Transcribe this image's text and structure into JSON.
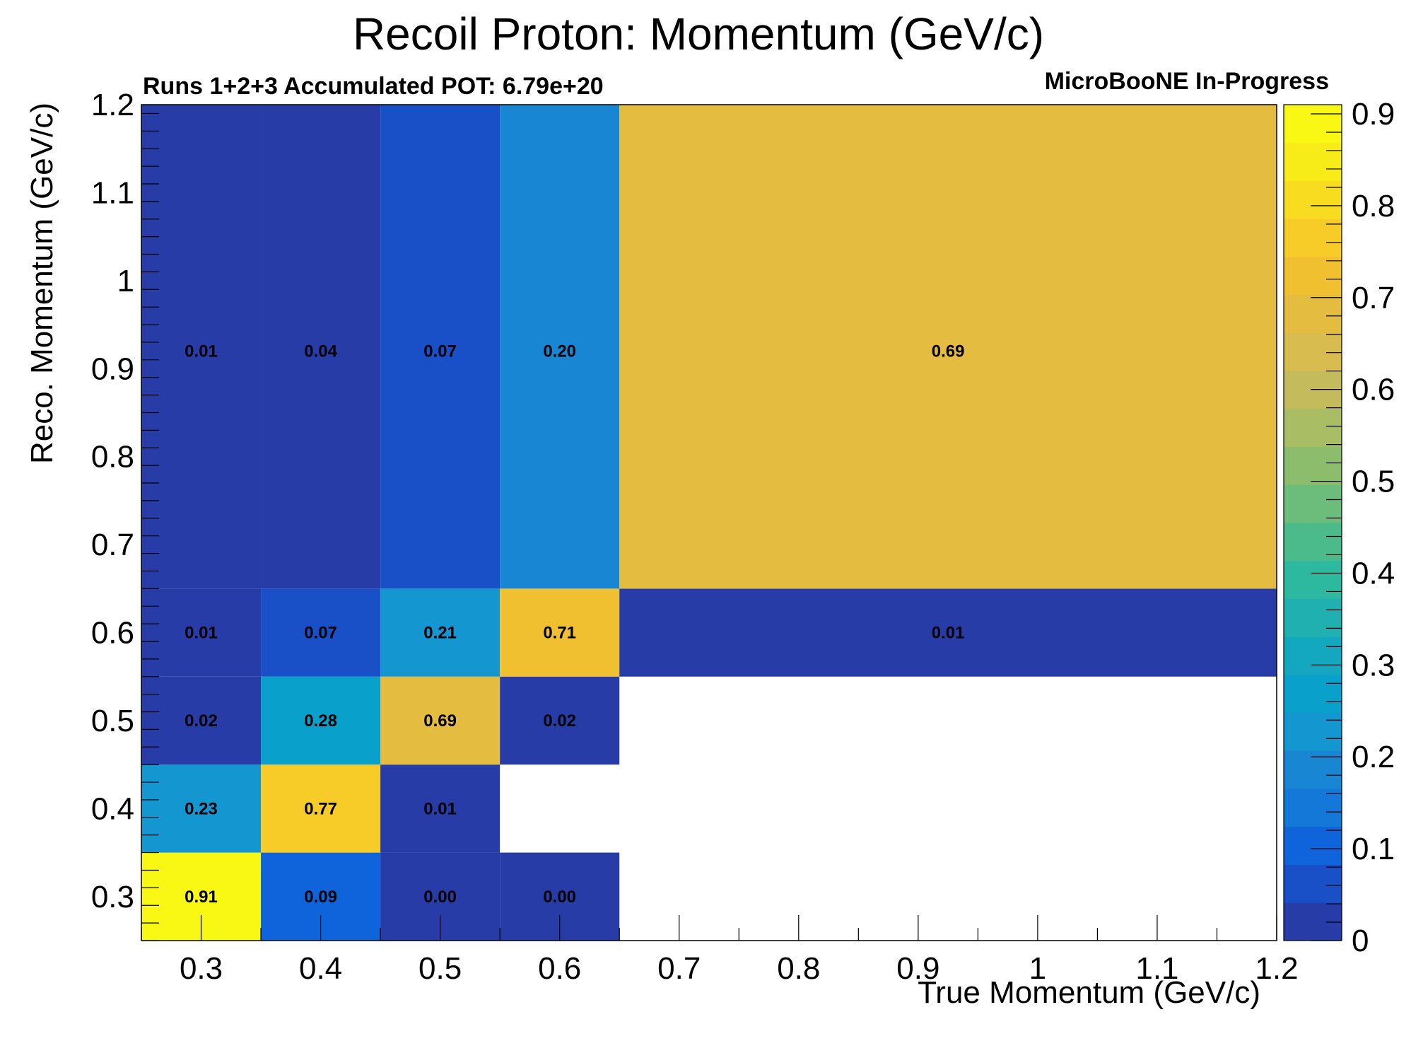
{
  "chart_data": {
    "type": "heatmap",
    "title": "Recoil Proton: Momentum (GeV/c)",
    "subtitle_left": "Runs 1+2+3 Accumulated POT: 6.79e+20",
    "subtitle_right": "MicroBooNE In-Progress",
    "xlabel": "True Momentum (GeV/c)",
    "ylabel": "Reco. Momentum (GeV/c)",
    "xlim": [
      0.25,
      1.2
    ],
    "ylim": [
      0.25,
      1.2
    ],
    "x_ticks": [
      "0.3",
      "0.4",
      "0.5",
      "0.6",
      "0.7",
      "0.8",
      "0.9",
      "1",
      "1.1",
      "1.2"
    ],
    "y_ticks": [
      "0.3",
      "0.4",
      "0.5",
      "0.6",
      "0.7",
      "0.8",
      "0.9",
      "1",
      "1.1",
      "1.2"
    ],
    "x_bin_edges": [
      0.25,
      0.35,
      0.45,
      0.55,
      0.65,
      1.2
    ],
    "y_bin_edges": [
      0.25,
      0.35,
      0.45,
      0.55,
      0.65,
      1.2
    ],
    "cells": [
      {
        "xi": 0,
        "yi": 0,
        "value": 0.91,
        "label": "0.91"
      },
      {
        "xi": 1,
        "yi": 0,
        "value": 0.09,
        "label": "0.09"
      },
      {
        "xi": 2,
        "yi": 0,
        "value": 0.0,
        "label": "0.00"
      },
      {
        "xi": 3,
        "yi": 0,
        "value": 0.0,
        "label": "0.00"
      },
      {
        "xi": 0,
        "yi": 1,
        "value": 0.23,
        "label": "0.23"
      },
      {
        "xi": 1,
        "yi": 1,
        "value": 0.77,
        "label": "0.77"
      },
      {
        "xi": 2,
        "yi": 1,
        "value": 0.01,
        "label": "0.01"
      },
      {
        "xi": 0,
        "yi": 2,
        "value": 0.02,
        "label": "0.02"
      },
      {
        "xi": 1,
        "yi": 2,
        "value": 0.28,
        "label": "0.28"
      },
      {
        "xi": 2,
        "yi": 2,
        "value": 0.69,
        "label": "0.69"
      },
      {
        "xi": 3,
        "yi": 2,
        "value": 0.02,
        "label": "0.02"
      },
      {
        "xi": 0,
        "yi": 3,
        "value": 0.01,
        "label": "0.01"
      },
      {
        "xi": 1,
        "yi": 3,
        "value": 0.07,
        "label": "0.07"
      },
      {
        "xi": 2,
        "yi": 3,
        "value": 0.21,
        "label": "0.21"
      },
      {
        "xi": 3,
        "yi": 3,
        "value": 0.71,
        "label": "0.71"
      },
      {
        "xi": 4,
        "yi": 3,
        "value": 0.01,
        "label": "0.01"
      },
      {
        "xi": 0,
        "yi": 4,
        "value": 0.01,
        "label": "0.01"
      },
      {
        "xi": 1,
        "yi": 4,
        "value": 0.04,
        "label": "0.04"
      },
      {
        "xi": 2,
        "yi": 4,
        "value": 0.07,
        "label": "0.07"
      },
      {
        "xi": 3,
        "yi": 4,
        "value": 0.2,
        "label": "0.20"
      },
      {
        "xi": 4,
        "yi": 4,
        "value": 0.69,
        "label": "0.69"
      }
    ],
    "colorbar": {
      "min": 0,
      "max": 0.91,
      "ticks": [
        "0",
        "0.1",
        "0.2",
        "0.3",
        "0.4",
        "0.5",
        "0.6",
        "0.7",
        "0.8",
        "0.9"
      ],
      "palette": [
        "#283ca8",
        "#1950c8",
        "#0f64dc",
        "#1478d8",
        "#1986d4",
        "#1496d0",
        "#0aa0cc",
        "#14a8c0",
        "#20b0b0",
        "#2db8a0",
        "#4cbb8c",
        "#6cbc7c",
        "#8cbd6c",
        "#a8bd64",
        "#c4bc5c",
        "#d8bc50",
        "#e4bc40",
        "#f0c030",
        "#f8cc28",
        "#f8dc20",
        "#f8ec18",
        "#f8f814"
      ]
    }
  }
}
